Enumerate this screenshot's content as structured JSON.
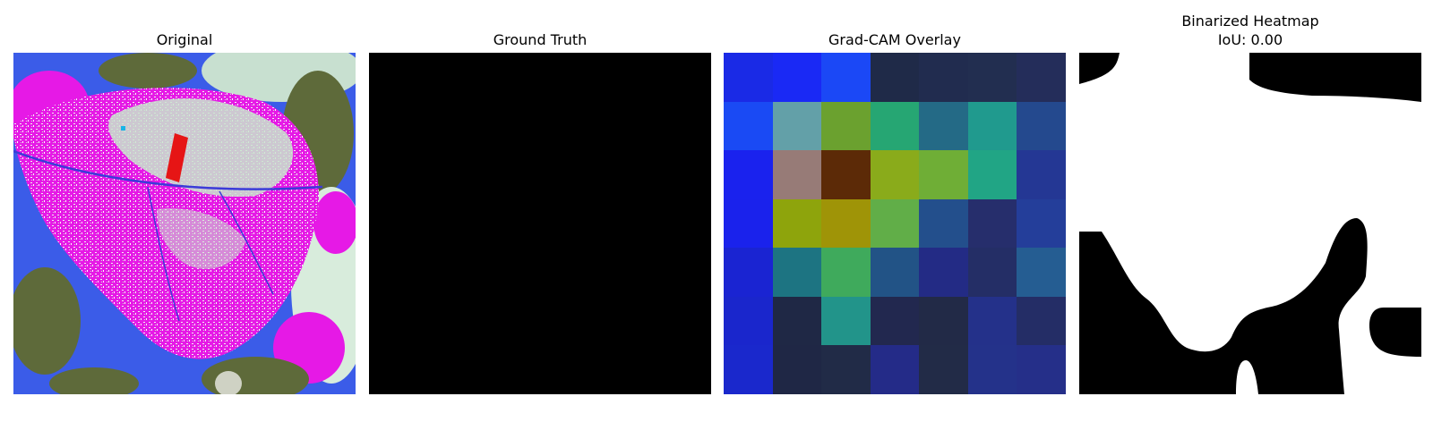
{
  "panels": [
    {
      "title": "Original"
    },
    {
      "title": "Ground Truth"
    },
    {
      "title": "Grad-CAM Overlay"
    },
    {
      "title": "Binarized Heatmap",
      "subtitle": "IoU: 0.00"
    }
  ],
  "gradcam_cells": [
    [
      "#1a2ae6",
      "#1a29f5",
      "#1b48f6",
      "#1f2a48",
      "#212c4f",
      "#222e50",
      "#242d5a"
    ],
    [
      "#1a4af4",
      "#63a0a8",
      "#6ba12f",
      "#26a673",
      "#246a86",
      "#209a8e",
      "#24498e"
    ],
    [
      "#1a22ee",
      "#977b77",
      "#5c2a07",
      "#8aab1b",
      "#6fae36",
      "#21a585",
      "#243794"
    ],
    [
      "#1a22ec",
      "#8ea40c",
      "#9f9407",
      "#61ae48",
      "#234f8c",
      "#262e6c",
      "#243e9a"
    ],
    [
      "#1a24d2",
      "#1d7482",
      "#3faa5c",
      "#225386",
      "#232b85",
      "#242e66",
      "#255d92"
    ],
    [
      "#1a26cc",
      "#1f2845",
      "#22948a",
      "#22284f",
      "#222a47",
      "#24318a",
      "#242d66"
    ],
    [
      "#1a28cc",
      "#1f2745",
      "#212b47",
      "#242b88",
      "#222b47",
      "#24328a",
      "#252f89"
    ]
  ],
  "colors": {
    "leaf_magenta": "#e619e6",
    "leaf_pale": "#c8e8cc",
    "background_blue": "#3b5ce8",
    "background_olive": "#5e6a3a",
    "ground_truth": "#000000",
    "mask_on": "#ffffff",
    "mask_off": "#000000"
  }
}
